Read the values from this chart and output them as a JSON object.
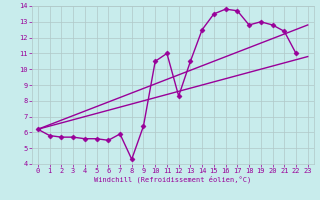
{
  "xlabel": "Windchill (Refroidissement éolien,°C)",
  "xlim": [
    -0.5,
    23.5
  ],
  "ylim": [
    4,
    14
  ],
  "xticks": [
    0,
    1,
    2,
    3,
    4,
    5,
    6,
    7,
    8,
    9,
    10,
    11,
    12,
    13,
    14,
    15,
    16,
    17,
    18,
    19,
    20,
    21,
    22,
    23
  ],
  "yticks": [
    4,
    5,
    6,
    7,
    8,
    9,
    10,
    11,
    12,
    13,
    14
  ],
  "bg_color": "#c8ecec",
  "line_color": "#990099",
  "grid_color": "#b0c8c8",
  "curve_x": [
    0,
    1,
    2,
    3,
    4,
    5,
    6,
    7,
    8,
    9,
    10,
    11,
    12,
    13,
    14,
    15,
    16,
    17,
    18,
    19,
    20,
    21,
    22
  ],
  "curve_y": [
    6.2,
    5.8,
    5.7,
    5.7,
    5.6,
    5.6,
    5.5,
    5.9,
    4.3,
    6.4,
    10.5,
    11.0,
    8.3,
    10.5,
    12.5,
    13.5,
    13.8,
    13.7,
    12.8,
    13.0,
    12.8,
    12.4,
    11.0
  ],
  "line1_x": [
    0,
    23
  ],
  "line1_y": [
    6.2,
    10.8
  ],
  "line2_x": [
    0,
    23
  ],
  "line2_y": [
    6.2,
    12.8
  ],
  "marker": "D",
  "markersize": 2.5,
  "linewidth": 1.0
}
